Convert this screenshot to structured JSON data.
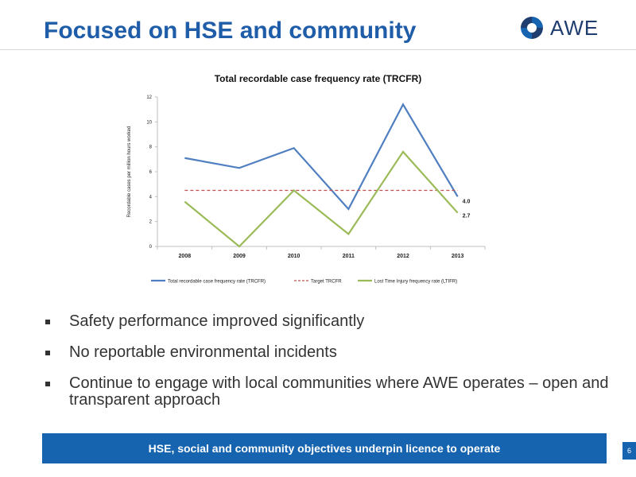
{
  "slide": {
    "title": "Focused on HSE and community",
    "logo_text": "AWE",
    "bullets": [
      "Safety performance improved significantly",
      "No reportable environmental incidents",
      "Continue to engage with local communities where AWE operates – open and transparent approach"
    ],
    "banner": "HSE, social and community objectives underpin licence to operate",
    "page_number": "6"
  },
  "colors": {
    "brand_blue": "#1664b0",
    "title_blue": "#1f5da9",
    "trcfr": "#4f7fc0",
    "target": "#c0504d",
    "ltifr": "#9bbb59"
  },
  "chart_data": {
    "type": "line",
    "title": "Total recordable case frequency rate (TRCFR)",
    "xlabel": "",
    "ylabel": "Recordable cases per million hours worked",
    "categories": [
      "2008",
      "2009",
      "2010",
      "2011",
      "2012",
      "2013"
    ],
    "ylim": [
      0,
      12
    ],
    "yticks": [
      "0",
      "2",
      "4",
      "6",
      "8",
      "10",
      "12"
    ],
    "grid": false,
    "legend_position": "bottom",
    "series": [
      {
        "name": "Total recordable case frequency rate (TRCFR)",
        "values": [
          7.1,
          6.3,
          7.9,
          3.0,
          11.4,
          4.0
        ],
        "style": "solid"
      },
      {
        "name": "Target TRCFR",
        "values": [
          4.5,
          4.5,
          4.5,
          4.5,
          4.5,
          4.5
        ],
        "style": "dashed"
      },
      {
        "name": "Lost Time Injury frequency rate (LTIFR)",
        "values": [
          3.6,
          0.0,
          4.5,
          1.0,
          7.6,
          2.7
        ],
        "style": "solid"
      }
    ],
    "annotations": [
      "4.0",
      "2.7"
    ]
  }
}
